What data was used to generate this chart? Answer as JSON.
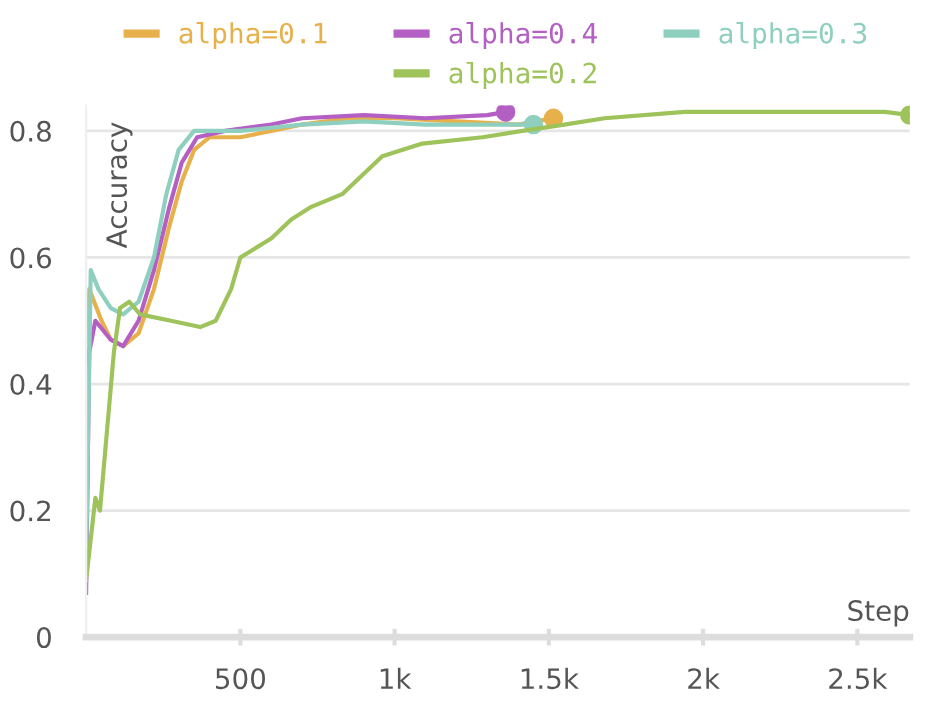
{
  "chart_data": {
    "type": "line",
    "xlabel": "Step",
    "ylabel": "Accuracy",
    "xlim": [
      0,
      2670
    ],
    "ylim": [
      0,
      0.84
    ],
    "xticks": [
      500,
      {
        "value": 1000,
        "label": "1k"
      },
      {
        "value": 1500,
        "label": "1.5k"
      },
      {
        "value": 2000,
        "label": "2k"
      },
      {
        "value": 2500,
        "label": "2.5k"
      }
    ],
    "yticks": [
      0,
      0.2,
      0.4,
      0.6,
      0.8
    ],
    "grid": "y",
    "legend": "top",
    "line_style": "solid",
    "series": [
      {
        "name": "alpha=0.1",
        "color": "#e8b04a",
        "x": [
          0,
          10,
          50,
          80,
          120,
          170,
          220,
          270,
          310,
          350,
          400,
          500,
          600,
          700,
          850,
          1000,
          1200,
          1400,
          1515
        ],
        "values": [
          0.1,
          0.55,
          0.5,
          0.47,
          0.46,
          0.48,
          0.55,
          0.65,
          0.72,
          0.77,
          0.79,
          0.79,
          0.8,
          0.81,
          0.82,
          0.82,
          0.815,
          0.81,
          0.82
        ]
      },
      {
        "name": "alpha=0.4",
        "color": "#b35fc4",
        "x": [
          0,
          10,
          30,
          80,
          120,
          170,
          220,
          270,
          310,
          360,
          450,
          600,
          700,
          900,
          1100,
          1300,
          1360
        ],
        "values": [
          0.07,
          0.45,
          0.5,
          0.47,
          0.46,
          0.5,
          0.58,
          0.68,
          0.75,
          0.79,
          0.8,
          0.81,
          0.82,
          0.825,
          0.82,
          0.825,
          0.83
        ]
      },
      {
        "name": "alpha=0.3",
        "color": "#8ecfbf",
        "x": [
          0,
          15,
          40,
          80,
          120,
          170,
          220,
          260,
          300,
          350,
          500,
          700,
          900,
          1100,
          1300,
          1450
        ],
        "values": [
          0.12,
          0.58,
          0.55,
          0.52,
          0.51,
          0.53,
          0.6,
          0.7,
          0.77,
          0.8,
          0.8,
          0.81,
          0.815,
          0.81,
          0.81,
          0.81
        ]
      },
      {
        "name": "alpha=0.2",
        "color": "#9dc35a",
        "x": [
          0,
          30,
          45,
          90,
          110,
          140,
          175,
          275,
          370,
          420,
          470,
          500,
          600,
          665,
          730,
          830,
          895,
          960,
          1090,
          1285,
          1415,
          1550,
          1680,
          1940,
          2330,
          2590,
          2670
        ],
        "values": [
          0.09,
          0.22,
          0.2,
          0.45,
          0.52,
          0.53,
          0.51,
          0.5,
          0.49,
          0.5,
          0.55,
          0.6,
          0.63,
          0.66,
          0.68,
          0.7,
          0.73,
          0.76,
          0.78,
          0.79,
          0.8,
          0.81,
          0.82,
          0.83,
          0.83,
          0.83,
          0.825
        ]
      }
    ]
  }
}
